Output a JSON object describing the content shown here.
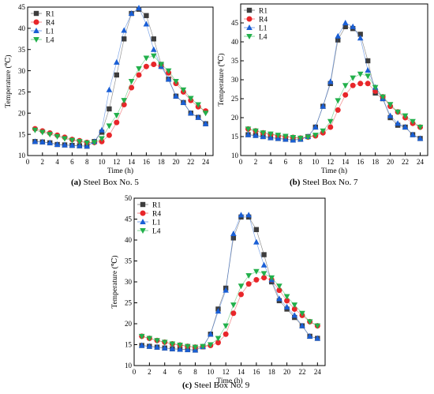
{
  "chart_data": [
    {
      "type": "line",
      "caption_letter": "(a)",
      "caption_text": " Steel Box No. 5",
      "xlabel": "Time (h)",
      "ylabel": "Temperature (℃)",
      "xlim": [
        0,
        25
      ],
      "ylim": [
        10,
        45
      ],
      "xticks": [
        0,
        2,
        4,
        6,
        8,
        10,
        12,
        14,
        16,
        18,
        20,
        22,
        24
      ],
      "yticks": [
        10,
        15,
        20,
        25,
        30,
        35,
        40,
        45
      ],
      "legend_position": "top-left",
      "grid": false,
      "x": [
        1,
        2,
        3,
        4,
        5,
        6,
        7,
        8,
        9,
        10,
        11,
        12,
        13,
        14,
        15,
        16,
        17,
        18,
        19,
        20,
        21,
        22,
        23,
        24
      ],
      "series": [
        {
          "name": "R1",
          "color": "#3d3d3d",
          "marker": "square",
          "values": [
            13.3,
            13.2,
            13.0,
            12.6,
            12.5,
            12.4,
            12.3,
            12.2,
            13.3,
            15.5,
            21.0,
            29.0,
            37.5,
            43.5,
            44.5,
            43.0,
            37.5,
            31.5,
            28.0,
            24.0,
            22.5,
            20.0,
            19.0,
            17.5
          ]
        },
        {
          "name": "R4",
          "color": "#e8262a",
          "marker": "circle",
          "values": [
            16.3,
            15.8,
            15.3,
            14.8,
            14.3,
            13.8,
            13.5,
            13.1,
            13.1,
            13.3,
            14.8,
            17.8,
            22.0,
            26.0,
            29.0,
            31.0,
            31.5,
            31.0,
            29.5,
            27.0,
            25.0,
            23.0,
            21.5,
            20.5
          ]
        },
        {
          "name": "L1",
          "color": "#1a5fd6",
          "marker": "triangle-up",
          "values": [
            13.3,
            13.2,
            13.0,
            12.6,
            12.5,
            12.4,
            12.3,
            12.2,
            13.3,
            16.0,
            25.5,
            32.0,
            39.5,
            43.5,
            44.8,
            41.0,
            35.0,
            31.0,
            28.0,
            24.0,
            22.5,
            20.0,
            19.0,
            17.5
          ]
        },
        {
          "name": "L4",
          "color": "#22b04b",
          "marker": "triangle-down",
          "values": [
            16.0,
            15.5,
            15.0,
            14.5,
            14.0,
            13.6,
            13.3,
            13.0,
            13.1,
            14.0,
            17.0,
            19.5,
            23.0,
            27.5,
            30.5,
            33.0,
            33.5,
            31.5,
            30.0,
            27.5,
            25.5,
            23.5,
            22.0,
            20.0
          ]
        }
      ]
    },
    {
      "type": "line",
      "caption_letter": "(b)",
      "caption_text": " Steel Box No. 7",
      "xlabel": "Time (h)",
      "ylabel": "Temperature (℃)",
      "xlim": [
        0,
        25
      ],
      "ylim": [
        10,
        50
      ],
      "xticks": [
        0,
        2,
        4,
        6,
        8,
        10,
        12,
        14,
        16,
        18,
        20,
        22,
        24
      ],
      "yticks": [
        10,
        15,
        20,
        25,
        30,
        35,
        40,
        45
      ],
      "legend_position": "top-left",
      "grid": false,
      "x": [
        1,
        2,
        3,
        4,
        5,
        6,
        7,
        8,
        9,
        10,
        11,
        12,
        13,
        14,
        15,
        16,
        17,
        18,
        19,
        20,
        21,
        22,
        23,
        24
      ],
      "series": [
        {
          "name": "R1",
          "color": "#3d3d3d",
          "marker": "square",
          "values": [
            15.5,
            15.3,
            15.0,
            14.7,
            14.5,
            14.3,
            14.1,
            14.3,
            15.0,
            17.5,
            23.0,
            29.0,
            40.5,
            44.0,
            43.5,
            42.0,
            35.0,
            26.5,
            25.0,
            20.0,
            18.0,
            17.5,
            15.5,
            14.5
          ]
        },
        {
          "name": "R4",
          "color": "#e8262a",
          "marker": "circle",
          "values": [
            17.0,
            16.5,
            16.0,
            15.6,
            15.2,
            15.0,
            14.8,
            14.6,
            14.9,
            15.2,
            16.0,
            17.5,
            22.0,
            26.0,
            28.5,
            29.0,
            29.0,
            27.0,
            25.5,
            23.0,
            21.5,
            20.0,
            18.5,
            17.5
          ]
        },
        {
          "name": "L1",
          "color": "#1a5fd6",
          "marker": "triangle-up",
          "values": [
            15.5,
            15.3,
            15.0,
            14.7,
            14.5,
            14.3,
            14.1,
            14.3,
            15.0,
            17.5,
            23.0,
            29.5,
            41.5,
            45.0,
            44.0,
            41.0,
            32.5,
            28.0,
            25.0,
            20.5,
            18.5,
            17.5,
            15.5,
            14.5
          ]
        },
        {
          "name": "L4",
          "color": "#22b04b",
          "marker": "triangle-down",
          "values": [
            17.0,
            16.5,
            16.0,
            15.7,
            15.4,
            15.1,
            14.8,
            14.6,
            14.9,
            15.4,
            16.5,
            19.0,
            24.5,
            28.5,
            30.5,
            31.5,
            31.0,
            28.0,
            25.5,
            23.5,
            21.5,
            20.5,
            19.0,
            17.5
          ]
        }
      ]
    },
    {
      "type": "line",
      "caption_letter": "(c)",
      "caption_text": " Steel Box No. 9",
      "xlabel": "Time (h)",
      "ylabel": "Temperature (℃)",
      "xlim": [
        0,
        25
      ],
      "ylim": [
        10,
        50
      ],
      "xticks": [
        0,
        2,
        4,
        6,
        8,
        10,
        12,
        14,
        16,
        18,
        20,
        22,
        24
      ],
      "yticks": [
        10,
        15,
        20,
        25,
        30,
        35,
        40,
        45,
        50
      ],
      "legend_position": "top-left",
      "grid": false,
      "x": [
        1,
        2,
        3,
        4,
        5,
        6,
        7,
        8,
        9,
        10,
        11,
        12,
        13,
        14,
        15,
        16,
        17,
        18,
        19,
        20,
        21,
        22,
        23,
        24
      ],
      "series": [
        {
          "name": "R1",
          "color": "#3d3d3d",
          "marker": "square",
          "values": [
            14.8,
            14.6,
            14.4,
            14.2,
            14.0,
            13.9,
            13.8,
            13.7,
            14.5,
            17.5,
            23.5,
            28.5,
            40.5,
            45.5,
            45.5,
            42.5,
            36.5,
            30.0,
            25.5,
            23.5,
            21.5,
            19.5,
            17.0,
            16.5
          ]
        },
        {
          "name": "R4",
          "color": "#e8262a",
          "marker": "circle",
          "values": [
            17.0,
            16.5,
            16.0,
            15.6,
            15.2,
            14.9,
            14.6,
            14.4,
            14.5,
            14.8,
            15.5,
            17.5,
            22.5,
            27.0,
            29.5,
            30.5,
            31.0,
            30.5,
            28.0,
            25.5,
            23.5,
            22.0,
            20.5,
            19.5
          ]
        },
        {
          "name": "L1",
          "color": "#1a5fd6",
          "marker": "triangle-up",
          "values": [
            14.8,
            14.6,
            14.4,
            14.2,
            14.0,
            13.9,
            13.8,
            13.7,
            14.5,
            17.5,
            23.0,
            28.0,
            41.5,
            46.0,
            46.0,
            39.5,
            34.0,
            30.5,
            26.0,
            24.0,
            22.0,
            19.5,
            17.0,
            16.5
          ]
        },
        {
          "name": "L4",
          "color": "#22b04b",
          "marker": "triangle-down",
          "values": [
            17.0,
            16.5,
            16.0,
            15.6,
            15.2,
            14.9,
            14.6,
            14.4,
            14.6,
            15.0,
            16.5,
            19.5,
            24.5,
            29.0,
            31.5,
            32.5,
            32.0,
            31.0,
            29.0,
            26.5,
            24.5,
            22.5,
            20.5,
            19.5
          ]
        }
      ]
    }
  ]
}
